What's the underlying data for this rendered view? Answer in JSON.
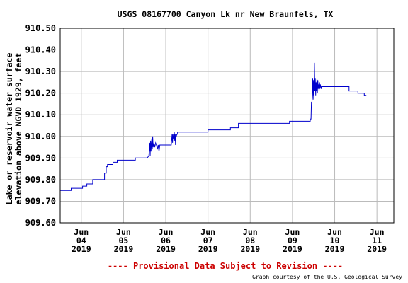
{
  "chart_data": {
    "type": "line",
    "title": "USGS 08167700 Canyon Lk nr New Braunfels, TX",
    "ylabel_lines": [
      "Lake or reservoir water surface",
      "elevation above NGVD 1929, feet"
    ],
    "ylim": [
      909.6,
      910.5
    ],
    "yticks": [
      "909.60",
      "909.70",
      "909.80",
      "909.90",
      "910.00",
      "910.10",
      "910.20",
      "910.30",
      "910.40",
      "910.50"
    ],
    "xlim_days": [
      3.5,
      11.4
    ],
    "xticks": [
      {
        "day": 4,
        "lines": [
          "Jun",
          "04",
          "2019"
        ]
      },
      {
        "day": 5,
        "lines": [
          "Jun",
          "05",
          "2019"
        ]
      },
      {
        "day": 6,
        "lines": [
          "Jun",
          "06",
          "2019"
        ]
      },
      {
        "day": 7,
        "lines": [
          "Jun",
          "07",
          "2019"
        ]
      },
      {
        "day": 8,
        "lines": [
          "Jun",
          "08",
          "2019"
        ]
      },
      {
        "day": 9,
        "lines": [
          "Jun",
          "09",
          "2019"
        ]
      },
      {
        "day": 10,
        "lines": [
          "Jun",
          "10",
          "2019"
        ]
      },
      {
        "day": 11,
        "lines": [
          "Jun",
          "11",
          "2019"
        ]
      }
    ],
    "grid": true,
    "series": [
      {
        "color": "#0000cc",
        "x": [
          3.5,
          3.76,
          3.76,
          4.03,
          4.03,
          4.07,
          4.07,
          4.13,
          4.13,
          4.27,
          4.27,
          4.55,
          4.55,
          4.59,
          4.59,
          4.62,
          4.62,
          4.75,
          4.75,
          4.85,
          4.85,
          5.0,
          5.0,
          5.28,
          5.28,
          5.56,
          5.56,
          5.6,
          5.62,
          5.63,
          5.64,
          5.65,
          5.66,
          5.67,
          5.68,
          5.69,
          5.7,
          5.72,
          5.74,
          5.76,
          5.78,
          5.8,
          5.82,
          5.84,
          5.86,
          5.88,
          6.13,
          6.15,
          6.16,
          6.17,
          6.18,
          6.19,
          6.2,
          6.21,
          6.22,
          6.23,
          6.24,
          6.25,
          6.26,
          6.28,
          6.28,
          6.3,
          6.3,
          6.4,
          6.4,
          7.0,
          7.0,
          7.53,
          7.53,
          7.7,
          7.7,
          7.72,
          7.72,
          8.6,
          8.6,
          8.93,
          8.93,
          9.42,
          9.42,
          9.44,
          9.45,
          9.46,
          9.47,
          9.48,
          9.49,
          9.5,
          9.51,
          9.52,
          9.53,
          9.54,
          9.55,
          9.56,
          9.57,
          9.58,
          9.59,
          9.6,
          9.61,
          9.62,
          9.63,
          9.64,
          9.65,
          9.66,
          9.67,
          9.68,
          9.69,
          9.7,
          9.72,
          10.34,
          10.34,
          10.55,
          10.55,
          10.7,
          10.7,
          10.75
        ],
        "values": [
          909.75,
          909.75,
          909.76,
          909.76,
          909.77,
          909.77,
          909.77,
          909.77,
          909.78,
          909.78,
          909.8,
          909.8,
          909.83,
          909.83,
          909.86,
          909.86,
          909.87,
          909.87,
          909.88,
          909.88,
          909.89,
          909.89,
          909.89,
          909.89,
          909.9,
          909.9,
          909.9,
          909.91,
          909.97,
          909.91,
          909.98,
          909.93,
          909.97,
          909.99,
          909.94,
          910.0,
          909.95,
          909.97,
          909.95,
          909.97,
          909.96,
          909.94,
          909.96,
          909.93,
          909.96,
          909.96,
          909.96,
          910.01,
          909.97,
          910.01,
          909.99,
          910.0,
          910.02,
          909.98,
          910.01,
          909.96,
          910.01,
          910.0,
          910.01,
          910.01,
          910.02,
          910.02,
          910.02,
          910.02,
          910.02,
          910.02,
          910.03,
          910.03,
          910.04,
          910.04,
          910.04,
          910.04,
          910.06,
          910.06,
          910.06,
          910.06,
          910.07,
          910.07,
          910.08,
          910.08,
          910.16,
          910.14,
          910.2,
          910.27,
          910.17,
          910.26,
          910.19,
          910.34,
          910.21,
          910.27,
          910.19,
          910.25,
          910.21,
          910.27,
          910.2,
          910.26,
          910.22,
          910.24,
          910.21,
          910.25,
          910.22,
          910.24,
          910.23,
          910.22,
          910.23,
          910.23,
          910.23,
          910.23,
          910.21,
          910.21,
          910.2,
          910.2,
          910.19,
          910.19
        ]
      }
    ]
  },
  "footer": {
    "provisional": "---- Provisional Data Subject to Revision ----",
    "credit": "Graph courtesy of the U.S. Geological Survey"
  }
}
